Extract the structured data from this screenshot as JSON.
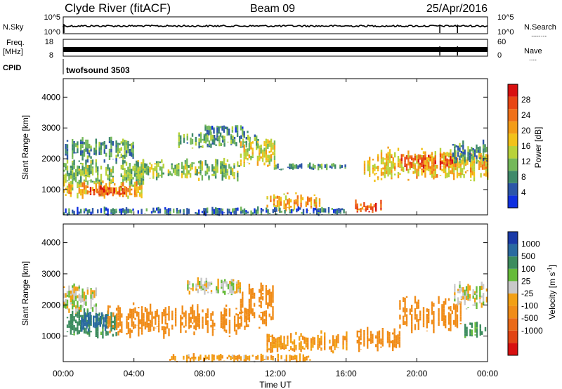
{
  "header": {
    "station": "Clyde River (fitACF)",
    "beam": "Beam 09",
    "date": "25/Apr/2016"
  },
  "strips": {
    "nsky": {
      "left_label": "N.Sky",
      "right_label": "N.Search",
      "right_dots": "........",
      "left_ticks": [
        "10^5",
        "10^0"
      ],
      "right_ticks": [
        "10^5",
        "10^0"
      ]
    },
    "freq": {
      "left_label_1": "Freq.",
      "left_label_2": "[MHz]",
      "right_label": "Nave",
      "right_dots": "....",
      "left_ticks": [
        "18",
        "8"
      ],
      "right_ticks": [
        "60",
        "0"
      ]
    },
    "cpid": {
      "label": "CPID",
      "program": "twofsound 3503"
    }
  },
  "axes": {
    "xlabel": "Time UT",
    "x_ticks": [
      "00:00",
      "04:00",
      "08:00",
      "12:00",
      "16:00",
      "20:00",
      "00:00"
    ],
    "ylabel": "Slant Range [km]",
    "y_ticks": [
      1000,
      2000,
      3000,
      4000
    ],
    "ylim": [
      180,
      4600
    ],
    "xlim_hours": [
      0,
      24
    ]
  },
  "power_scale": {
    "label": "Power [dB]",
    "ticks": [
      "4",
      "8",
      "12",
      "16",
      "20",
      "24",
      "28"
    ],
    "colors": [
      "#1030e0",
      "#2c56a8",
      "#3f8a6a",
      "#74b85a",
      "#b8d23a",
      "#f2c21a",
      "#f39c17",
      "#f07018",
      "#e84614",
      "#d81010"
    ]
  },
  "velocity_scale": {
    "label": "Velocity [m s",
    "label_sup": "-1",
    "label_end": "]",
    "ticks": [
      "1000",
      "500",
      "100",
      "25",
      "-25",
      "-100",
      "-500",
      "-1000"
    ],
    "colors": [
      "#1a3aa8",
      "#2a6aa0",
      "#3c8c5e",
      "#66bb3a",
      "#c8c8c8",
      "#f2a014",
      "#f08c18",
      "#ea6a18",
      "#e24414",
      "#d81010"
    ]
  },
  "chart_data": [
    {
      "type": "heatmap",
      "title": "Power",
      "xlabel": "Time UT",
      "ylabel": "Slant Range [km]",
      "ylim": [
        180,
        4600
      ],
      "colorbar": "Power [dB]",
      "colorbar_range": [
        0,
        32
      ],
      "scatter_regions": [
        {
          "t0": 0.0,
          "t1": 4.5,
          "r_center": 1500,
          "r_halfwidth": 450,
          "value": 12
        },
        {
          "t0": 0.0,
          "t1": 4.5,
          "r_center": 1000,
          "r_halfwidth": 250,
          "value": 20
        },
        {
          "t0": 1.5,
          "t1": 3.5,
          "r_center": 950,
          "r_halfwidth": 150,
          "value": 28
        },
        {
          "t0": 0.0,
          "t1": 4.0,
          "r_center": 2300,
          "r_halfwidth": 350,
          "value": 9
        },
        {
          "t0": 4.0,
          "t1": 10.0,
          "r_center": 1650,
          "r_halfwidth": 300,
          "value": 12
        },
        {
          "t0": 6.5,
          "t1": 11.0,
          "r_center": 2600,
          "r_halfwidth": 250,
          "value": 10
        },
        {
          "t0": 8.0,
          "t1": 10.5,
          "r_center": 2900,
          "r_halfwidth": 200,
          "value": 8
        },
        {
          "t0": 10.0,
          "t1": 12.0,
          "r_center": 2200,
          "r_halfwidth": 450,
          "value": 16
        },
        {
          "t0": 11.5,
          "t1": 14.5,
          "r_center": 600,
          "r_halfwidth": 250,
          "value": 20
        },
        {
          "t0": 0.0,
          "t1": 16.0,
          "r_center": 300,
          "r_halfwidth": 120,
          "value": 6
        },
        {
          "t0": 12.0,
          "t1": 16.0,
          "r_center": 1750,
          "r_halfwidth": 100,
          "value": 8
        },
        {
          "t0": 16.5,
          "t1": 18.0,
          "r_center": 450,
          "r_halfwidth": 200,
          "value": 26
        },
        {
          "t0": 17.0,
          "t1": 24.0,
          "r_center": 1800,
          "r_halfwidth": 450,
          "value": 18
        },
        {
          "t0": 19.0,
          "t1": 22.0,
          "r_center": 1900,
          "r_halfwidth": 250,
          "value": 26
        },
        {
          "t0": 22.0,
          "t1": 24.0,
          "r_center": 2200,
          "r_halfwidth": 350,
          "value": 9
        }
      ]
    },
    {
      "type": "heatmap",
      "title": "Velocity",
      "xlabel": "Time UT",
      "ylabel": "Slant Range [km]",
      "ylim": [
        180,
        4600
      ],
      "colorbar": "Velocity [m s-1]",
      "colorbar_range": [
        -1000,
        1000
      ],
      "scatter_regions": [
        {
          "t0": 0.0,
          "t1": 2.0,
          "r_center": 2200,
          "r_halfwidth": 450,
          "value": 0
        },
        {
          "t0": 0.0,
          "t1": 3.0,
          "r_center": 1400,
          "r_halfwidth": 400,
          "value": 150
        },
        {
          "t0": 1.0,
          "t1": 2.5,
          "r_center": 1500,
          "r_halfwidth": 300,
          "value": 700
        },
        {
          "t0": 2.5,
          "t1": 10.5,
          "r_center": 1500,
          "r_halfwidth": 450,
          "value": -200
        },
        {
          "t0": 7.0,
          "t1": 10.0,
          "r_center": 2600,
          "r_halfwidth": 250,
          "value": 0
        },
        {
          "t0": 10.0,
          "t1": 12.0,
          "r_center": 2000,
          "r_halfwidth": 600,
          "value": -300
        },
        {
          "t0": 11.5,
          "t1": 16.0,
          "r_center": 800,
          "r_halfwidth": 300,
          "value": -100
        },
        {
          "t0": 6.0,
          "t1": 14.0,
          "r_center": 300,
          "r_halfwidth": 120,
          "value": -80
        },
        {
          "t0": 16.5,
          "t1": 19.0,
          "r_center": 900,
          "r_halfwidth": 350,
          "value": -200
        },
        {
          "t0": 19.0,
          "t1": 22.5,
          "r_center": 1700,
          "r_halfwidth": 500,
          "value": -400
        },
        {
          "t0": 22.0,
          "t1": 24.0,
          "r_center": 2300,
          "r_halfwidth": 400,
          "value": 0
        },
        {
          "t0": 22.5,
          "t1": 24.0,
          "r_center": 1200,
          "r_halfwidth": 250,
          "value": 150
        }
      ]
    }
  ]
}
